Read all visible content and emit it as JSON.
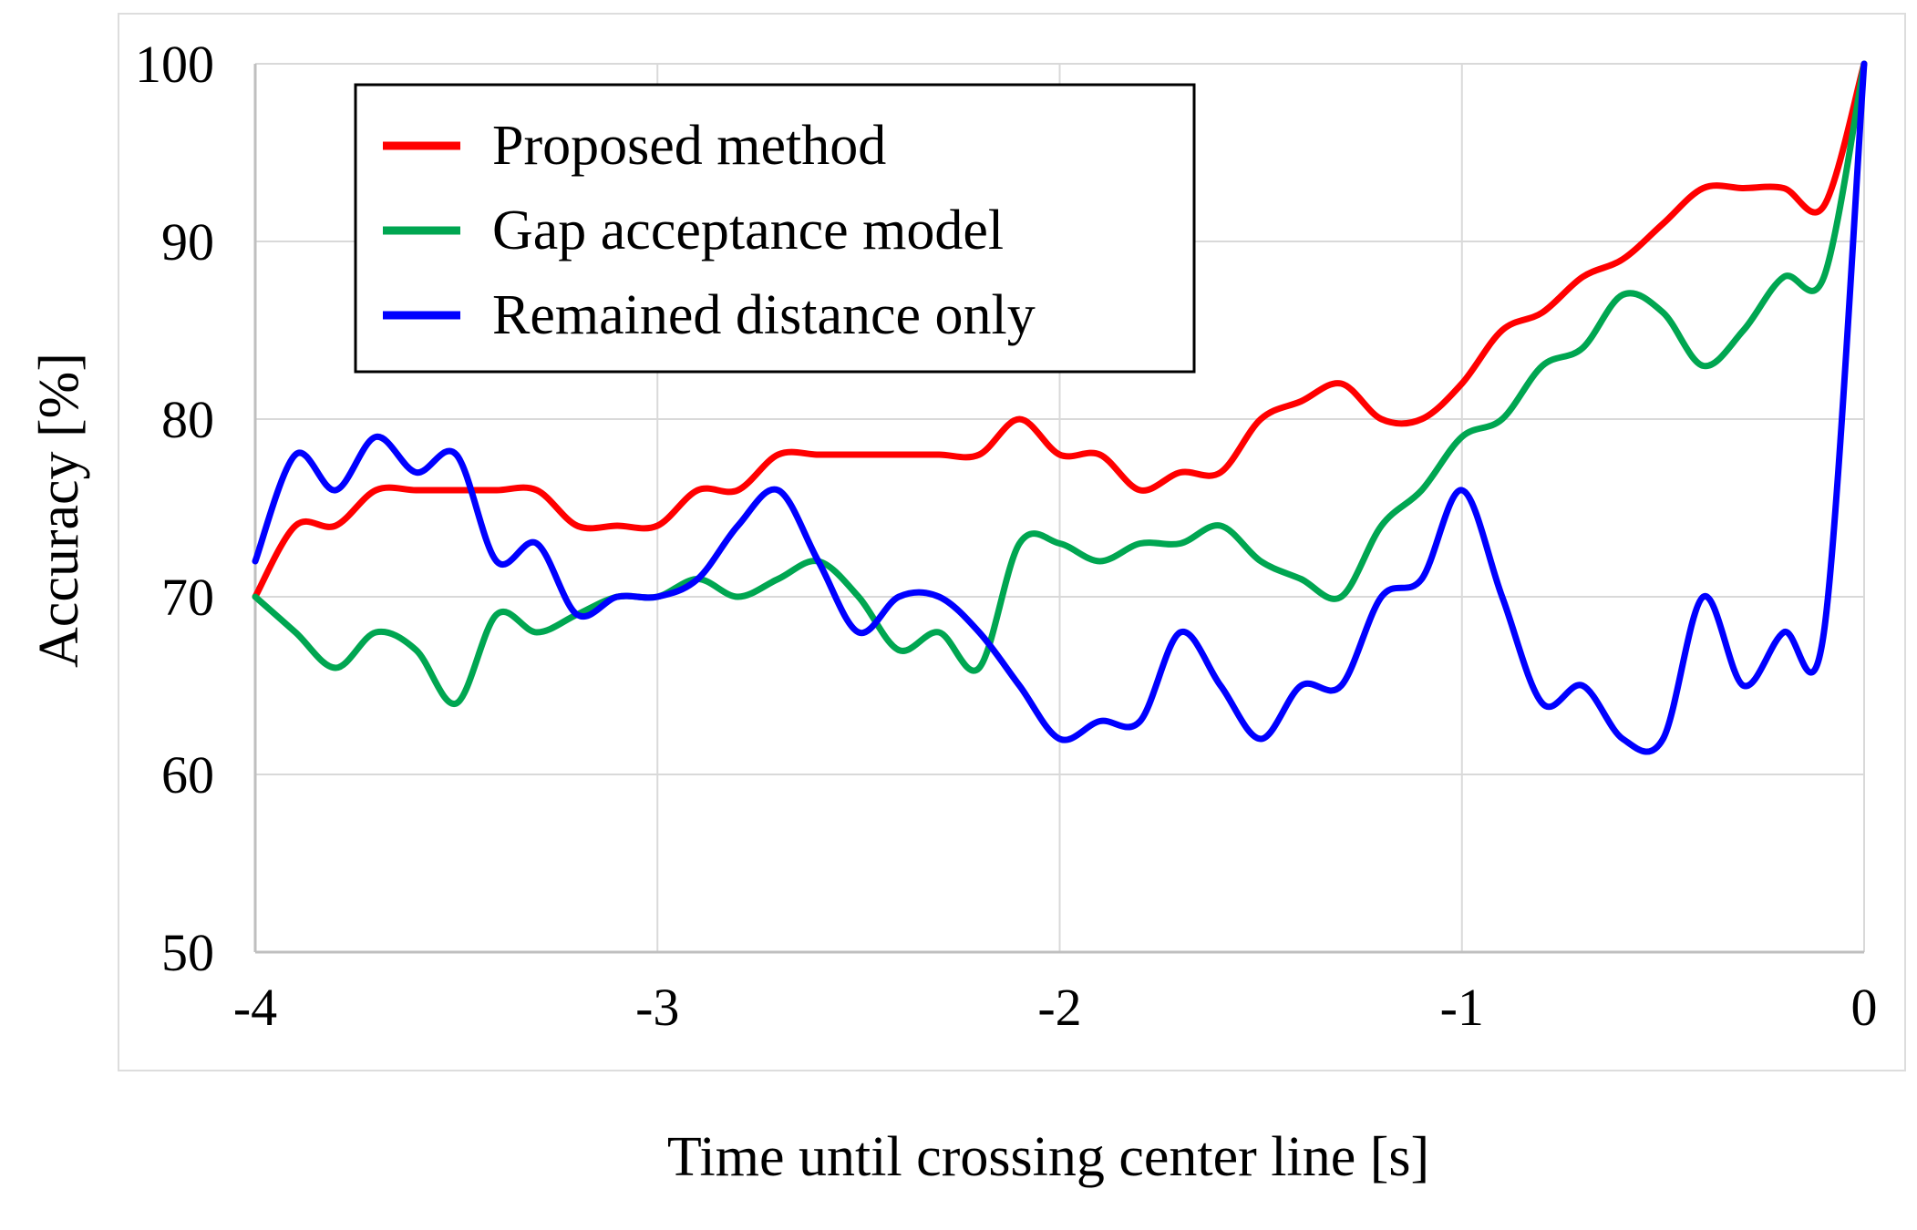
{
  "chart_data": {
    "type": "line",
    "title": "",
    "xlabel": "Time until crossing center line [s]",
    "ylabel": "Accuracy [%]",
    "xlim": [
      -4,
      0
    ],
    "ylim": [
      50,
      100
    ],
    "x_ticks": [
      -4,
      -3,
      -2,
      -1,
      0
    ],
    "y_ticks": [
      50,
      60,
      70,
      80,
      90,
      100
    ],
    "x_tick_labels": [
      "-4",
      "-3",
      "-2",
      "-1",
      "0"
    ],
    "y_tick_labels": [
      "50",
      "60",
      "70",
      "80",
      "90",
      "100"
    ],
    "grid": true,
    "legend_position": "top-left",
    "x": [
      -4.0,
      -3.9,
      -3.8,
      -3.7,
      -3.6,
      -3.5,
      -3.4,
      -3.3,
      -3.2,
      -3.1,
      -3.0,
      -2.9,
      -2.8,
      -2.7,
      -2.6,
      -2.5,
      -2.4,
      -2.3,
      -2.2,
      -2.1,
      -2.0,
      -1.9,
      -1.8,
      -1.7,
      -1.6,
      -1.5,
      -1.4,
      -1.3,
      -1.2,
      -1.1,
      -1.0,
      -0.9,
      -0.8,
      -0.7,
      -0.6,
      -0.5,
      -0.4,
      -0.3,
      -0.2,
      -0.1,
      0.0
    ],
    "series": [
      {
        "name": "Proposed method",
        "color": "#ff0000",
        "values": [
          70,
          74,
          74,
          76,
          76,
          76,
          76,
          76,
          74,
          74,
          74,
          76,
          76,
          78,
          78,
          78,
          78,
          78,
          78,
          80,
          78,
          78,
          76,
          77,
          77,
          80,
          81,
          82,
          80,
          80,
          82,
          85,
          86,
          88,
          89,
          91,
          93,
          93,
          93,
          92,
          100
        ]
      },
      {
        "name": "Gap acceptance model",
        "color": "#00a651",
        "values": [
          70,
          68,
          66,
          68,
          67,
          64,
          69,
          68,
          69,
          70,
          70,
          71,
          70,
          71,
          72,
          70,
          67,
          68,
          66,
          73,
          73,
          72,
          73,
          73,
          74,
          72,
          71,
          70,
          74,
          76,
          79,
          80,
          83,
          84,
          87,
          86,
          83,
          85,
          88,
          88,
          100
        ]
      },
      {
        "name": "Remained distance only",
        "color": "#0000ff",
        "values": [
          72,
          78,
          76,
          79,
          77,
          78,
          72,
          73,
          69,
          70,
          70,
          71,
          74,
          76,
          72,
          68,
          70,
          70,
          68,
          65,
          62,
          63,
          63,
          68,
          65,
          62,
          65,
          65,
          70,
          71,
          76,
          70,
          64,
          65,
          62,
          62,
          70,
          65,
          68,
          68,
          100
        ]
      }
    ]
  }
}
